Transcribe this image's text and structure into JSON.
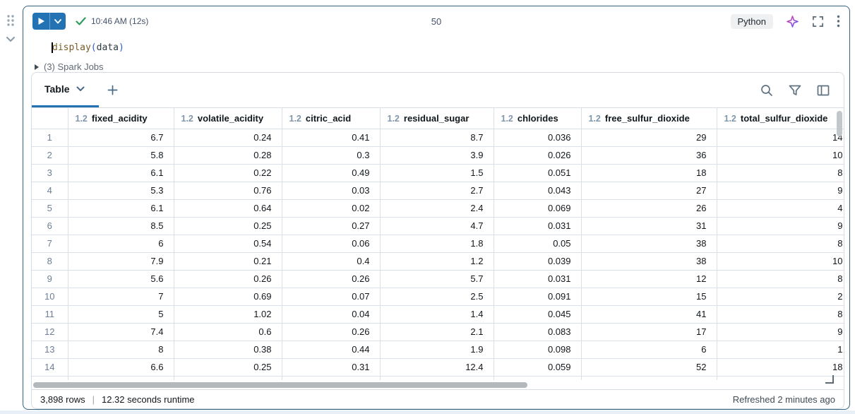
{
  "cell": {
    "toolbar": {
      "run_time": "10:46 AM (12s)",
      "cell_number": "50",
      "language": "Python"
    },
    "code": {
      "function": "display",
      "paren_open": "(",
      "argument": "data",
      "paren_close": ")"
    },
    "spark_jobs_label": "(3) Spark Jobs",
    "results": {
      "tab_label": "Table",
      "table": {
        "columns": [
          {
            "type": "1.2",
            "name": "fixed_acidity"
          },
          {
            "type": "1.2",
            "name": "volatile_acidity"
          },
          {
            "type": "1.2",
            "name": "citric_acid"
          },
          {
            "type": "1.2",
            "name": "residual_sugar"
          },
          {
            "type": "1.2",
            "name": "chlorides"
          },
          {
            "type": "1.2",
            "name": "free_sulfur_dioxide"
          },
          {
            "type": "1.2",
            "name": "total_sulfur_dioxide"
          }
        ],
        "rows": [
          [
            "1",
            "6.7",
            "0.24",
            "0.41",
            "8.7",
            "0.036",
            "29",
            "14"
          ],
          [
            "2",
            "5.8",
            "0.28",
            "0.3",
            "3.9",
            "0.026",
            "36",
            "10"
          ],
          [
            "3",
            "6.1",
            "0.22",
            "0.49",
            "1.5",
            "0.051",
            "18",
            "8"
          ],
          [
            "4",
            "5.3",
            "0.76",
            "0.03",
            "2.7",
            "0.043",
            "27",
            "9"
          ],
          [
            "5",
            "6.1",
            "0.64",
            "0.02",
            "2.4",
            "0.069",
            "26",
            "4"
          ],
          [
            "6",
            "8.5",
            "0.25",
            "0.27",
            "4.7",
            "0.031",
            "31",
            "9"
          ],
          [
            "7",
            "6",
            "0.54",
            "0.06",
            "1.8",
            "0.05",
            "38",
            "8"
          ],
          [
            "8",
            "7.9",
            "0.21",
            "0.4",
            "1.2",
            "0.039",
            "38",
            "10"
          ],
          [
            "9",
            "5.6",
            "0.26",
            "0.26",
            "5.7",
            "0.031",
            "12",
            "8"
          ],
          [
            "10",
            "7",
            "0.69",
            "0.07",
            "2.5",
            "0.091",
            "15",
            "2"
          ],
          [
            "11",
            "5",
            "1.02",
            "0.04",
            "1.4",
            "0.045",
            "41",
            "8"
          ],
          [
            "12",
            "7.4",
            "0.6",
            "0.26",
            "2.1",
            "0.083",
            "17",
            "9"
          ],
          [
            "13",
            "8",
            "0.38",
            "0.44",
            "1.9",
            "0.098",
            "6",
            "1"
          ],
          [
            "14",
            "6.6",
            "0.25",
            "0.31",
            "12.4",
            "0.059",
            "52",
            "18"
          ]
        ]
      },
      "footer": {
        "rows_count": "3,898 rows",
        "separator": "|",
        "runtime": "12.32 seconds runtime",
        "refreshed": "Refreshed 2 minutes ago"
      }
    }
  },
  "colors": {
    "accent_blue": "#2272B4",
    "cell_border_blue": "#35617F",
    "check_green": "#2E9E63",
    "grid_border": "#DAE0E7"
  }
}
